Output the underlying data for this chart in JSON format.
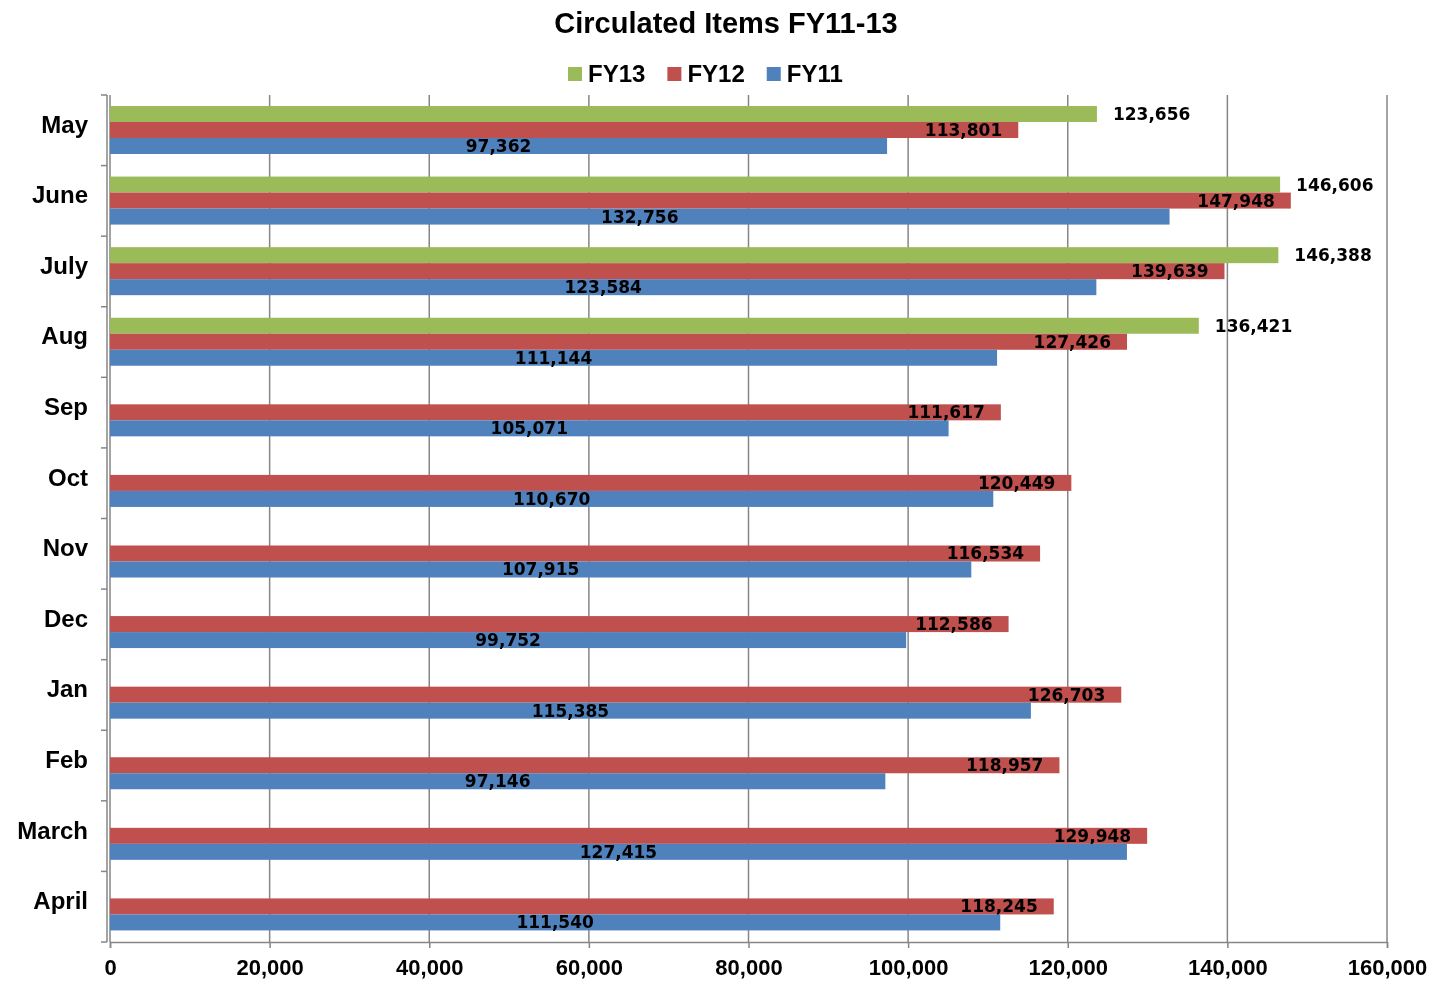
{
  "chart_data": {
    "type": "bar",
    "orientation": "horizontal",
    "title": "Circulated Items FY11-13",
    "categories": [
      "May",
      "June",
      "July",
      "Aug",
      "Sep",
      "Oct",
      "Nov",
      "Dec",
      "Jan",
      "Feb",
      "March",
      "April"
    ],
    "series": [
      {
        "name": "FY13",
        "color": "#9bbb59",
        "values": [
          123656,
          146606,
          146388,
          136421,
          null,
          null,
          null,
          null,
          null,
          null,
          null,
          null
        ],
        "value_labels": [
          "123,656",
          "146,606",
          "146,388",
          "136,421",
          null,
          null,
          null,
          null,
          null,
          null,
          null,
          null
        ]
      },
      {
        "name": "FY12",
        "color": "#c0504d",
        "values": [
          113801,
          147948,
          139639,
          127426,
          111617,
          120449,
          116534,
          112586,
          126703,
          118957,
          129948,
          118245
        ],
        "value_labels": [
          "113,801",
          "147,948",
          "139,639",
          "127,426",
          "111,617",
          "120,449",
          "116,534",
          "112,586",
          "126,703",
          "118,957",
          "129,948",
          "118,245"
        ]
      },
      {
        "name": "FY11",
        "color": "#4f81bd",
        "values": [
          97362,
          132756,
          123584,
          111144,
          105071,
          110670,
          107915,
          99752,
          115385,
          97146,
          127415,
          111540
        ],
        "value_labels": [
          "97,362",
          "132,756",
          "123,584",
          "111,144",
          "105,071",
          "110,670",
          "107,915",
          "99,752",
          "115,385",
          "97,146",
          "127,415",
          "111,540"
        ]
      }
    ],
    "xlim": [
      0,
      160000
    ],
    "xticks": [
      0,
      {
        "value": 20000,
        "label": "20,000"
      },
      {
        "value": 40000,
        "label": "40,000"
      },
      {
        "value": 60000,
        "label": "60,000"
      },
      {
        "value": 80000,
        "label": "80,000"
      },
      {
        "value": 100000,
        "label": "100,000"
      },
      {
        "value": 120000,
        "label": "120,000"
      },
      {
        "value": 140000,
        "label": "140,000"
      },
      {
        "value": 160000,
        "label": "160,000"
      }
    ],
    "grid": "x",
    "legend": "top"
  }
}
